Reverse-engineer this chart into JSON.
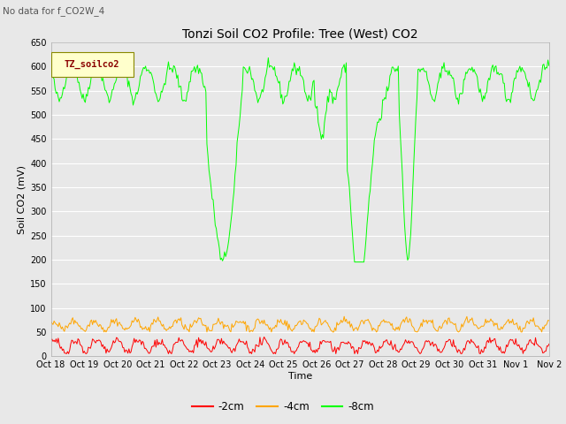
{
  "title": "Tonzi Soil CO2 Profile: Tree (West) CO2",
  "no_data_label": "No data for f_CO2W_4",
  "ylabel": "Soil CO2 (mV)",
  "xlabel": "Time",
  "legend_label": "TZ_soilco2",
  "series_labels": [
    "-2cm",
    "-4cm",
    "-8cm"
  ],
  "series_colors": [
    "#ff0000",
    "#ffa500",
    "#00ff00"
  ],
  "ylim": [
    0,
    650
  ],
  "yticks": [
    0,
    50,
    100,
    150,
    200,
    250,
    300,
    350,
    400,
    450,
    500,
    550,
    600,
    650
  ],
  "xtick_labels": [
    "Oct 18",
    "Oct 19",
    "Oct 20",
    "Oct 21",
    "Oct 22",
    "Oct 23",
    "Oct 24",
    "Oct 25",
    "Oct 26",
    "Oct 27",
    "Oct 28",
    "Oct 29",
    "Oct 30",
    "Oct 31",
    "Nov 1",
    "Nov 2"
  ],
  "plot_bg_color": "#e8e8e8",
  "fig_bg_color": "#e8e8e8",
  "legend_box_facecolor": "#ffffcc",
  "legend_box_edgecolor": "#888800",
  "legend_text_color": "#8b0000",
  "grid_color": "#ffffff",
  "n_points": 480,
  "title_fontsize": 10,
  "tick_fontsize": 7,
  "axis_label_fontsize": 8
}
